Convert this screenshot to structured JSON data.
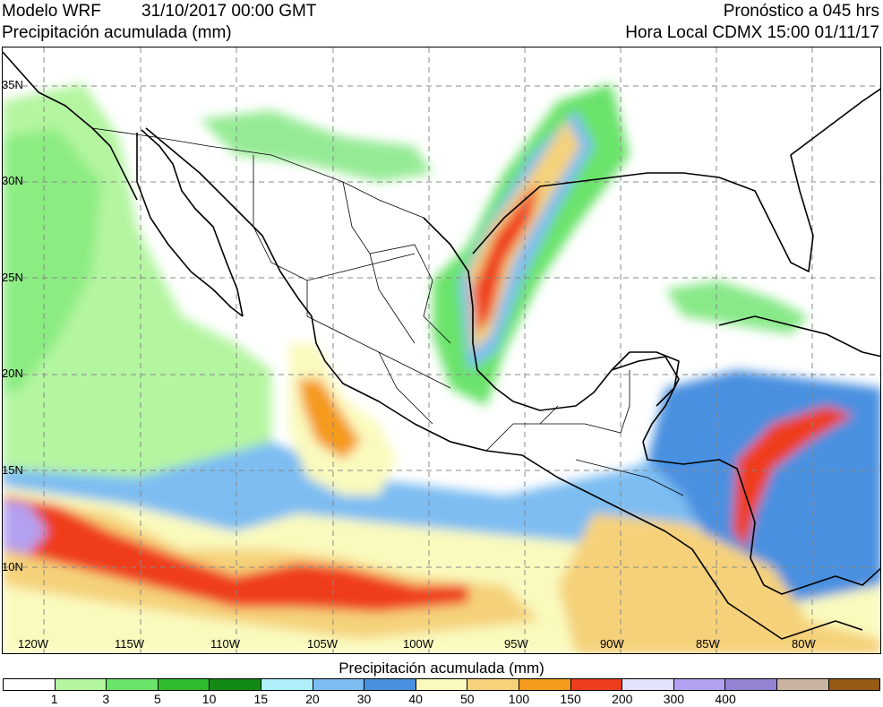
{
  "header": {
    "model": "Modelo WRF",
    "init_time": "31/10/2017 00:00 GMT",
    "variable": "Precipitación acumulada (mm)",
    "forecast": "Pronóstico a 045 hrs",
    "local_time": "Hora Local CDMX 15:00 01/11/17"
  },
  "map": {
    "lat_labels": [
      "35N",
      "30N",
      "25N",
      "20N",
      "15N",
      "10N"
    ],
    "lon_labels": [
      "120W",
      "115W",
      "110W",
      "105W",
      "100W",
      "95W",
      "90W",
      "85W",
      "80W"
    ]
  },
  "colorbar": {
    "title": "Precipitación acumulada (mm)",
    "colors": [
      "#ffffff",
      "#b4f5a0",
      "#6ae36a",
      "#2fbd2f",
      "#138a13",
      "#b0eefa",
      "#7dbdf2",
      "#4a90e0",
      "#fafabe",
      "#f5d27a",
      "#f59a1c",
      "#ef3c1e",
      "#e2e2fa",
      "#b4a0f0",
      "#9682d2",
      "#c8b4a0",
      "#965a14"
    ],
    "labels": [
      "1",
      "3",
      "5",
      "10",
      "15",
      "20",
      "30",
      "40",
      "50",
      "100",
      "150",
      "200",
      "300",
      "400"
    ]
  }
}
